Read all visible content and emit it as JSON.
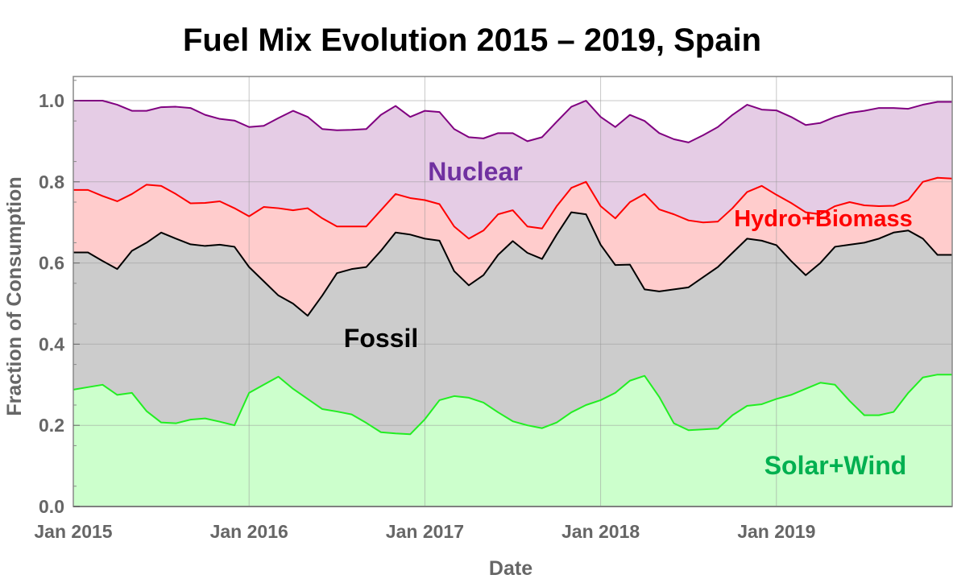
{
  "chart_data": {
    "type": "area",
    "stacked": true,
    "title": "Fuel Mix Evolution 2015 – 2019, Spain",
    "xlabel": "Date",
    "ylabel": "Fraction of Consumption",
    "xlim": [
      "2015-01",
      "2020-01"
    ],
    "ylim": [
      0,
      1.05
    ],
    "grid": true,
    "x_ticks": [
      "Jan 2015",
      "Jan 2016",
      "Jan 2017",
      "Jan 2018",
      "Jan 2019"
    ],
    "y_ticks": [
      "0.0",
      "0.2",
      "0.4",
      "0.6",
      "0.8",
      "1.0"
    ],
    "x": [
      "2015-01",
      "2015-02",
      "2015-03",
      "2015-04",
      "2015-05",
      "2015-06",
      "2015-07",
      "2015-08",
      "2015-09",
      "2015-10",
      "2015-11",
      "2015-12",
      "2016-01",
      "2016-02",
      "2016-03",
      "2016-04",
      "2016-05",
      "2016-06",
      "2016-07",
      "2016-08",
      "2016-09",
      "2016-10",
      "2016-11",
      "2016-12",
      "2017-01",
      "2017-02",
      "2017-03",
      "2017-04",
      "2017-05",
      "2017-06",
      "2017-07",
      "2017-08",
      "2017-09",
      "2017-10",
      "2017-11",
      "2017-12",
      "2018-01",
      "2018-02",
      "2018-03",
      "2018-04",
      "2018-05",
      "2018-06",
      "2018-07",
      "2018-08",
      "2018-09",
      "2018-10",
      "2018-11",
      "2018-12",
      "2019-01",
      "2019-02",
      "2019-03",
      "2019-04",
      "2019-05",
      "2019-06",
      "2019-07",
      "2019-08",
      "2019-09",
      "2019-10",
      "2019-11",
      "2019-12",
      "2020-01"
    ],
    "series": [
      {
        "name": "Solar+Wind",
        "fill": "#ccffcc",
        "line": "#22ee22",
        "label_color": "#00b050",
        "cumulative_top": [
          0.288,
          0.294,
          0.3,
          0.275,
          0.28,
          0.235,
          0.207,
          0.205,
          0.214,
          0.217,
          0.209,
          0.2,
          0.28,
          0.3,
          0.32,
          0.29,
          0.265,
          0.24,
          0.234,
          0.227,
          0.206,
          0.183,
          0.18,
          0.178,
          0.215,
          0.262,
          0.272,
          0.268,
          0.256,
          0.232,
          0.21,
          0.2,
          0.193,
          0.207,
          0.232,
          0.25,
          0.262,
          0.28,
          0.31,
          0.322,
          0.27,
          0.205,
          0.188,
          0.19,
          0.192,
          0.225,
          0.248,
          0.252,
          0.265,
          0.275,
          0.29,
          0.305,
          0.3,
          0.26,
          0.225,
          0.225,
          0.233,
          0.28,
          0.318,
          0.325,
          0.325
        ]
      },
      {
        "name": "Fossil",
        "fill": "#cccccc",
        "line": "#000000",
        "label_color": "#000000",
        "cumulative_top": [
          0.626,
          0.626,
          0.605,
          0.585,
          0.63,
          0.65,
          0.675,
          0.66,
          0.646,
          0.642,
          0.645,
          0.64,
          0.59,
          0.555,
          0.52,
          0.5,
          0.47,
          0.52,
          0.575,
          0.585,
          0.59,
          0.63,
          0.675,
          0.67,
          0.66,
          0.655,
          0.58,
          0.545,
          0.57,
          0.62,
          0.654,
          0.625,
          0.61,
          0.67,
          0.725,
          0.72,
          0.645,
          0.595,
          0.596,
          0.535,
          0.53,
          0.535,
          0.54,
          0.565,
          0.59,
          0.625,
          0.66,
          0.655,
          0.644,
          0.605,
          0.57,
          0.6,
          0.64,
          0.645,
          0.65,
          0.66,
          0.675,
          0.68,
          0.66,
          0.62,
          0.62
        ]
      },
      {
        "name": "Hydro+Biomass",
        "fill": "#ffcccc",
        "line": "#ff0000",
        "label_color": "#ff0000",
        "cumulative_top": [
          0.78,
          0.78,
          0.765,
          0.752,
          0.77,
          0.793,
          0.79,
          0.77,
          0.747,
          0.748,
          0.752,
          0.735,
          0.715,
          0.738,
          0.735,
          0.73,
          0.735,
          0.71,
          0.69,
          0.69,
          0.69,
          0.73,
          0.77,
          0.76,
          0.755,
          0.745,
          0.69,
          0.66,
          0.68,
          0.72,
          0.73,
          0.69,
          0.685,
          0.74,
          0.785,
          0.8,
          0.74,
          0.71,
          0.75,
          0.77,
          0.732,
          0.72,
          0.705,
          0.7,
          0.702,
          0.735,
          0.775,
          0.79,
          0.768,
          0.748,
          0.725,
          0.72,
          0.74,
          0.75,
          0.742,
          0.74,
          0.741,
          0.755,
          0.8,
          0.81,
          0.808
        ]
      },
      {
        "name": "Nuclear",
        "fill": "#e5cce5",
        "line": "#800080",
        "label_color": "#7030a0",
        "cumulative_top": [
          1.0,
          1.0,
          1.0,
          0.99,
          0.975,
          0.975,
          0.984,
          0.985,
          0.982,
          0.965,
          0.955,
          0.951,
          0.935,
          0.938,
          0.957,
          0.975,
          0.96,
          0.93,
          0.927,
          0.928,
          0.93,
          0.965,
          0.987,
          0.96,
          0.975,
          0.972,
          0.93,
          0.91,
          0.907,
          0.92,
          0.92,
          0.9,
          0.91,
          0.948,
          0.985,
          1.0,
          0.96,
          0.935,
          0.965,
          0.95,
          0.92,
          0.905,
          0.897,
          0.915,
          0.935,
          0.965,
          0.99,
          0.978,
          0.976,
          0.96,
          0.94,
          0.945,
          0.96,
          0.97,
          0.975,
          0.982,
          0.982,
          0.98,
          0.99,
          0.997,
          0.997
        ]
      }
    ]
  }
}
